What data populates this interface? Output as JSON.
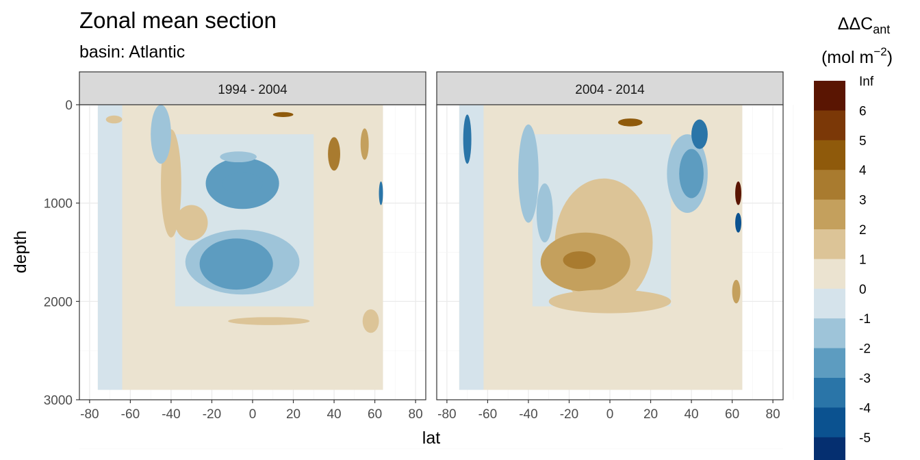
{
  "chart_data": {
    "type": "heatmap",
    "title": "Zonal mean section",
    "subtitle": "basin: Atlantic",
    "xlabel": "lat",
    "ylabel": "depth",
    "xlim": [
      -85,
      85
    ],
    "ylim": [
      3000,
      0
    ],
    "x_ticks": [
      -80,
      -60,
      -40,
      -20,
      0,
      20,
      40,
      60,
      80
    ],
    "y_ticks": [
      0,
      1000,
      2000,
      3000
    ],
    "y_reversed": true,
    "grid": true,
    "legend": {
      "title_main": "ΔΔC",
      "title_sub": "ant",
      "unit_prefix": "(mol m",
      "unit_sup": "−2",
      "unit_suffix": ")",
      "position": "right",
      "labels": [
        "Inf",
        "6",
        "5",
        "4",
        "3",
        "2",
        "1",
        "0",
        "-1",
        "-2",
        "-3",
        "-4",
        "-5"
      ],
      "colors": [
        "#5a1502",
        "#7b3807",
        "#8f5a0b",
        "#a97b2f",
        "#c4a05d",
        "#dcc497",
        "#ebe3d0",
        "#d5e3eb",
        "#9ec4d9",
        "#5d9cc0",
        "#2a75a8",
        "#0b5290",
        "#052f70"
      ]
    },
    "panels": [
      {
        "label": "1994 - 2004",
        "extent": {
          "lat_min": -76,
          "lat_max": 64,
          "depth_max": 2900
        },
        "features": [
          {
            "lat": -5,
            "depth": 800,
            "rlat": 18,
            "rdepth": 260,
            "value": -2.3
          },
          {
            "lat": -5,
            "depth": 800,
            "rlat": 10,
            "rdepth": 110,
            "value": -2.6
          },
          {
            "lat": -5,
            "depth": 1600,
            "rlat": 28,
            "rdepth": 330,
            "value": -1.6
          },
          {
            "lat": -8,
            "depth": 1620,
            "rlat": 18,
            "rdepth": 260,
            "value": -2.5
          },
          {
            "lat": -7,
            "depth": 530,
            "rlat": 9,
            "rdepth": 55,
            "value": -1.5
          },
          {
            "lat": -40,
            "depth": 800,
            "rlat": 5,
            "rdepth": 550,
            "value": 1.4
          },
          {
            "lat": -30,
            "depth": 1200,
            "rlat": 8,
            "rdepth": 180,
            "value": 1.3
          },
          {
            "lat": -68,
            "depth": 150,
            "rlat": 4,
            "rdepth": 40,
            "value": 1.8
          },
          {
            "lat": 15,
            "depth": 100,
            "rlat": 5,
            "rdepth": 25,
            "value": 4.5
          },
          {
            "lat": 40,
            "depth": 500,
            "rlat": 3,
            "rdepth": 170,
            "value": 3.5
          },
          {
            "lat": -45,
            "depth": 300,
            "rlat": 5,
            "rdepth": 300,
            "value": -1.5
          },
          {
            "lat": 55,
            "depth": 400,
            "rlat": 2,
            "rdepth": 160,
            "value": 2.2
          },
          {
            "lat": 63,
            "depth": 900,
            "rlat": 1,
            "rdepth": 120,
            "value": -3.5
          },
          {
            "lat": 8,
            "depth": 2200,
            "rlat": 20,
            "rdepth": 40,
            "value": 1.2
          },
          {
            "lat": 58,
            "depth": 2200,
            "rlat": 4,
            "rdepth": 120,
            "value": 1.5
          }
        ]
      },
      {
        "label": "2004 - 2014",
        "extent": {
          "lat_min": -74,
          "lat_max": 65,
          "depth_max": 2900
        },
        "features": [
          {
            "lat": -3,
            "depth": 1400,
            "rlat": 24,
            "rdepth": 650,
            "value": 1.5
          },
          {
            "lat": -12,
            "depth": 1600,
            "rlat": 22,
            "rdepth": 300,
            "value": 2.4
          },
          {
            "lat": -15,
            "depth": 1580,
            "rlat": 8,
            "rdepth": 90,
            "value": 3.4
          },
          {
            "lat": 0,
            "depth": 2000,
            "rlat": 30,
            "rdepth": 120,
            "value": 1.1
          },
          {
            "lat": 38,
            "depth": 700,
            "rlat": 10,
            "rdepth": 400,
            "value": -1.6
          },
          {
            "lat": 40,
            "depth": 700,
            "rlat": 6,
            "rdepth": 250,
            "value": -2.4
          },
          {
            "lat": 44,
            "depth": 300,
            "rlat": 4,
            "rdepth": 150,
            "value": -3.3
          },
          {
            "lat": 63,
            "depth": 900,
            "rlat": 1.5,
            "rdepth": 120,
            "value": 6.5
          },
          {
            "lat": 63,
            "depth": 1200,
            "rlat": 1.5,
            "rdepth": 100,
            "value": -4.5
          },
          {
            "lat": 10,
            "depth": 180,
            "rlat": 6,
            "rdepth": 40,
            "value": 4.2
          },
          {
            "lat": -70,
            "depth": 350,
            "rlat": 2,
            "rdepth": 250,
            "value": -3.2
          },
          {
            "lat": -40,
            "depth": 700,
            "rlat": 5,
            "rdepth": 500,
            "value": -1.4
          },
          {
            "lat": -32,
            "depth": 1100,
            "rlat": 4,
            "rdepth": 300,
            "value": -1.3
          },
          {
            "lat": 62,
            "depth": 1900,
            "rlat": 2,
            "rdepth": 120,
            "value": 2.2
          }
        ]
      }
    ]
  }
}
